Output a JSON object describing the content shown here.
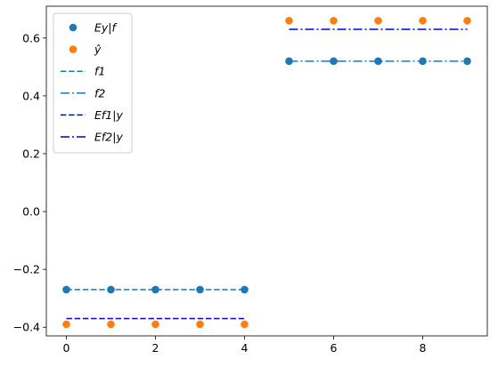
{
  "chart_data": {
    "type": "scatter",
    "title": "",
    "xlabel": "",
    "ylabel": "",
    "xlim": [
      -0.45,
      9.45
    ],
    "ylim": [
      -0.43,
      0.71
    ],
    "xticks": [
      0,
      2,
      4,
      6,
      8
    ],
    "xtick_labels": [
      "0",
      "2",
      "4",
      "6",
      "8"
    ],
    "yticks": [
      -0.4,
      -0.2,
      0.0,
      0.2,
      0.4,
      0.6
    ],
    "ytick_labels": [
      "−0.4",
      "−0.2",
      "0.0",
      "0.2",
      "0.4",
      "0.6"
    ],
    "grid": false,
    "legend_position": "top-left",
    "series": [
      {
        "name": "Ey|f",
        "legend_label": "Ey|f",
        "kind": "scatter",
        "color": "#1f77b4",
        "x": [
          0,
          1,
          2,
          3,
          4,
          5,
          6,
          7,
          8,
          9
        ],
        "y": [
          -0.27,
          -0.27,
          -0.27,
          -0.27,
          -0.27,
          0.52,
          0.52,
          0.52,
          0.52,
          0.52
        ]
      },
      {
        "name": "ŷ",
        "legend_label": "ŷ",
        "kind": "scatter",
        "color": "#ff7f0e",
        "x": [
          0,
          1,
          2,
          3,
          4,
          5,
          6,
          7,
          8,
          9
        ],
        "y": [
          -0.39,
          -0.39,
          -0.39,
          -0.39,
          -0.39,
          0.66,
          0.66,
          0.66,
          0.66,
          0.66
        ]
      },
      {
        "name": "f1",
        "legend_label": "f1",
        "kind": "line",
        "style": "dashed",
        "color": "#1f77b4",
        "x": [
          0,
          1,
          2,
          3,
          4
        ],
        "y": [
          -0.27,
          -0.27,
          -0.27,
          -0.27,
          -0.27
        ]
      },
      {
        "name": "f2",
        "legend_label": "f2",
        "kind": "line",
        "style": "dashdot",
        "color": "#1f77b4",
        "x": [
          5,
          6,
          7,
          8,
          9
        ],
        "y": [
          0.52,
          0.52,
          0.52,
          0.52,
          0.52
        ]
      },
      {
        "name": "Ef1|y",
        "legend_label": "Ef1|y",
        "kind": "line",
        "style": "dashed",
        "color": "#0000cd",
        "x": [
          0,
          1,
          2,
          3,
          4
        ],
        "y": [
          -0.37,
          -0.37,
          -0.37,
          -0.37,
          -0.37
        ]
      },
      {
        "name": "Ef2|y",
        "legend_label": "Ef2|y",
        "kind": "line",
        "style": "dashdot",
        "color": "#0000cd",
        "x": [
          5,
          6,
          7,
          8,
          9
        ],
        "y": [
          0.63,
          0.63,
          0.63,
          0.63,
          0.63
        ]
      }
    ]
  }
}
